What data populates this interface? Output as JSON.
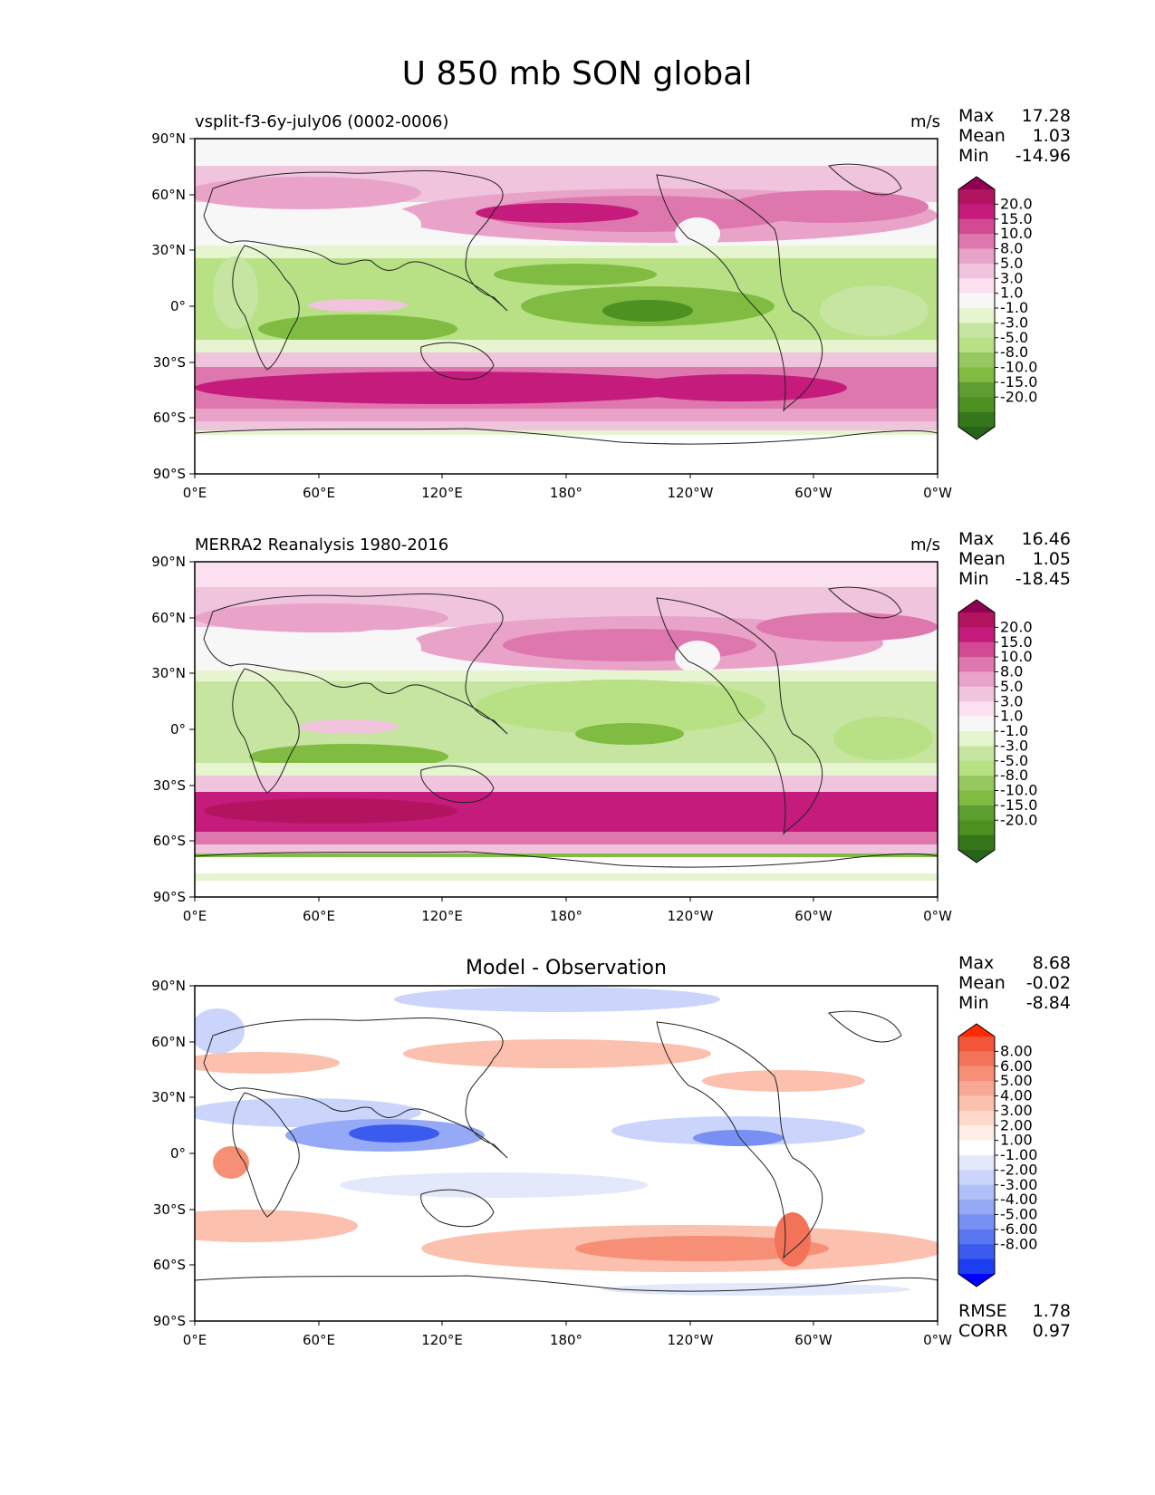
{
  "title": "U 850 mb SON global",
  "x_ticks": [
    "0°E",
    "60°E",
    "120°E",
    "180°",
    "120°W",
    "60°W",
    "0°W"
  ],
  "y_ticks": [
    "90°N",
    "60°N",
    "30°N",
    "0°",
    "30°S",
    "60°S",
    "90°S"
  ],
  "panels": [
    {
      "id": "model",
      "left_title": "vsplit-f3-6y-july06 (0002-0006)",
      "center_title": "",
      "units": "m/s",
      "stats": [
        {
          "label": "Max",
          "value": "17.28"
        },
        {
          "label": "Mean",
          "value": "1.03"
        },
        {
          "label": "Min",
          "value": "-14.96"
        }
      ],
      "colorbar_labels": [
        "20.0",
        "15.0",
        "10.0",
        "8.0",
        "5.0",
        "3.0",
        "1.0",
        "-1.0",
        "-3.0",
        "-5.0",
        "-8.0",
        "-10.0",
        "-15.0",
        "-20.0"
      ],
      "colorbar_colors": [
        "#8e0152",
        "#b3145f",
        "#c51b7d",
        "#d24a93",
        "#de77ae",
        "#e9a3c9",
        "#f1c4de",
        "#fde0ef",
        "#f7f7f7",
        "#e6f5d0",
        "#c5e5a0",
        "#b8e186",
        "#95c85f",
        "#7fbc41",
        "#5e9e31",
        "#4d9221",
        "#36761b",
        "#276419"
      ],
      "footer": []
    },
    {
      "id": "obs",
      "left_title": "MERRA2 Reanalysis 1980-2016",
      "center_title": "",
      "units": "m/s",
      "stats": [
        {
          "label": "Max",
          "value": "16.46"
        },
        {
          "label": "Mean",
          "value": "1.05"
        },
        {
          "label": "Min",
          "value": "-18.45"
        }
      ],
      "colorbar_labels": [
        "20.0",
        "15.0",
        "10.0",
        "8.0",
        "5.0",
        "3.0",
        "1.0",
        "-1.0",
        "-3.0",
        "-5.0",
        "-8.0",
        "-10.0",
        "-15.0",
        "-20.0"
      ],
      "colorbar_colors": [
        "#8e0152",
        "#b3145f",
        "#c51b7d",
        "#d24a93",
        "#de77ae",
        "#e9a3c9",
        "#f1c4de",
        "#fde0ef",
        "#f7f7f7",
        "#e6f5d0",
        "#c5e5a0",
        "#b8e186",
        "#95c85f",
        "#7fbc41",
        "#5e9e31",
        "#4d9221",
        "#36761b",
        "#276419"
      ],
      "footer": []
    },
    {
      "id": "diff",
      "left_title": "",
      "center_title": "Model - Observation",
      "units": "",
      "stats": [
        {
          "label": "Max",
          "value": "8.68"
        },
        {
          "label": "Mean",
          "value": "-0.02"
        },
        {
          "label": "Min",
          "value": "-8.84"
        }
      ],
      "colorbar_labels": [
        "8.00",
        "6.00",
        "5.00",
        "4.00",
        "3.00",
        "2.00",
        "1.00",
        "-1.00",
        "-2.00",
        "-3.00",
        "-4.00",
        "-5.00",
        "-6.00",
        "-8.00"
      ],
      "colorbar_colors": [
        "#ff2a00",
        "#f2553a",
        "#f37359",
        "#f78e76",
        "#f9a893",
        "#fbc0ae",
        "#fdd8cb",
        "#feeee6",
        "#ffffff",
        "#e3e8fb",
        "#cbd5fb",
        "#b1c0f8",
        "#95a9f6",
        "#7890f3",
        "#5a76f1",
        "#3b5bef",
        "#1b3ff0",
        "#0000ff"
      ],
      "footer": [
        {
          "label": "RMSE",
          "value": "1.78"
        },
        {
          "label": "CORR",
          "value": "0.97"
        }
      ]
    }
  ]
}
